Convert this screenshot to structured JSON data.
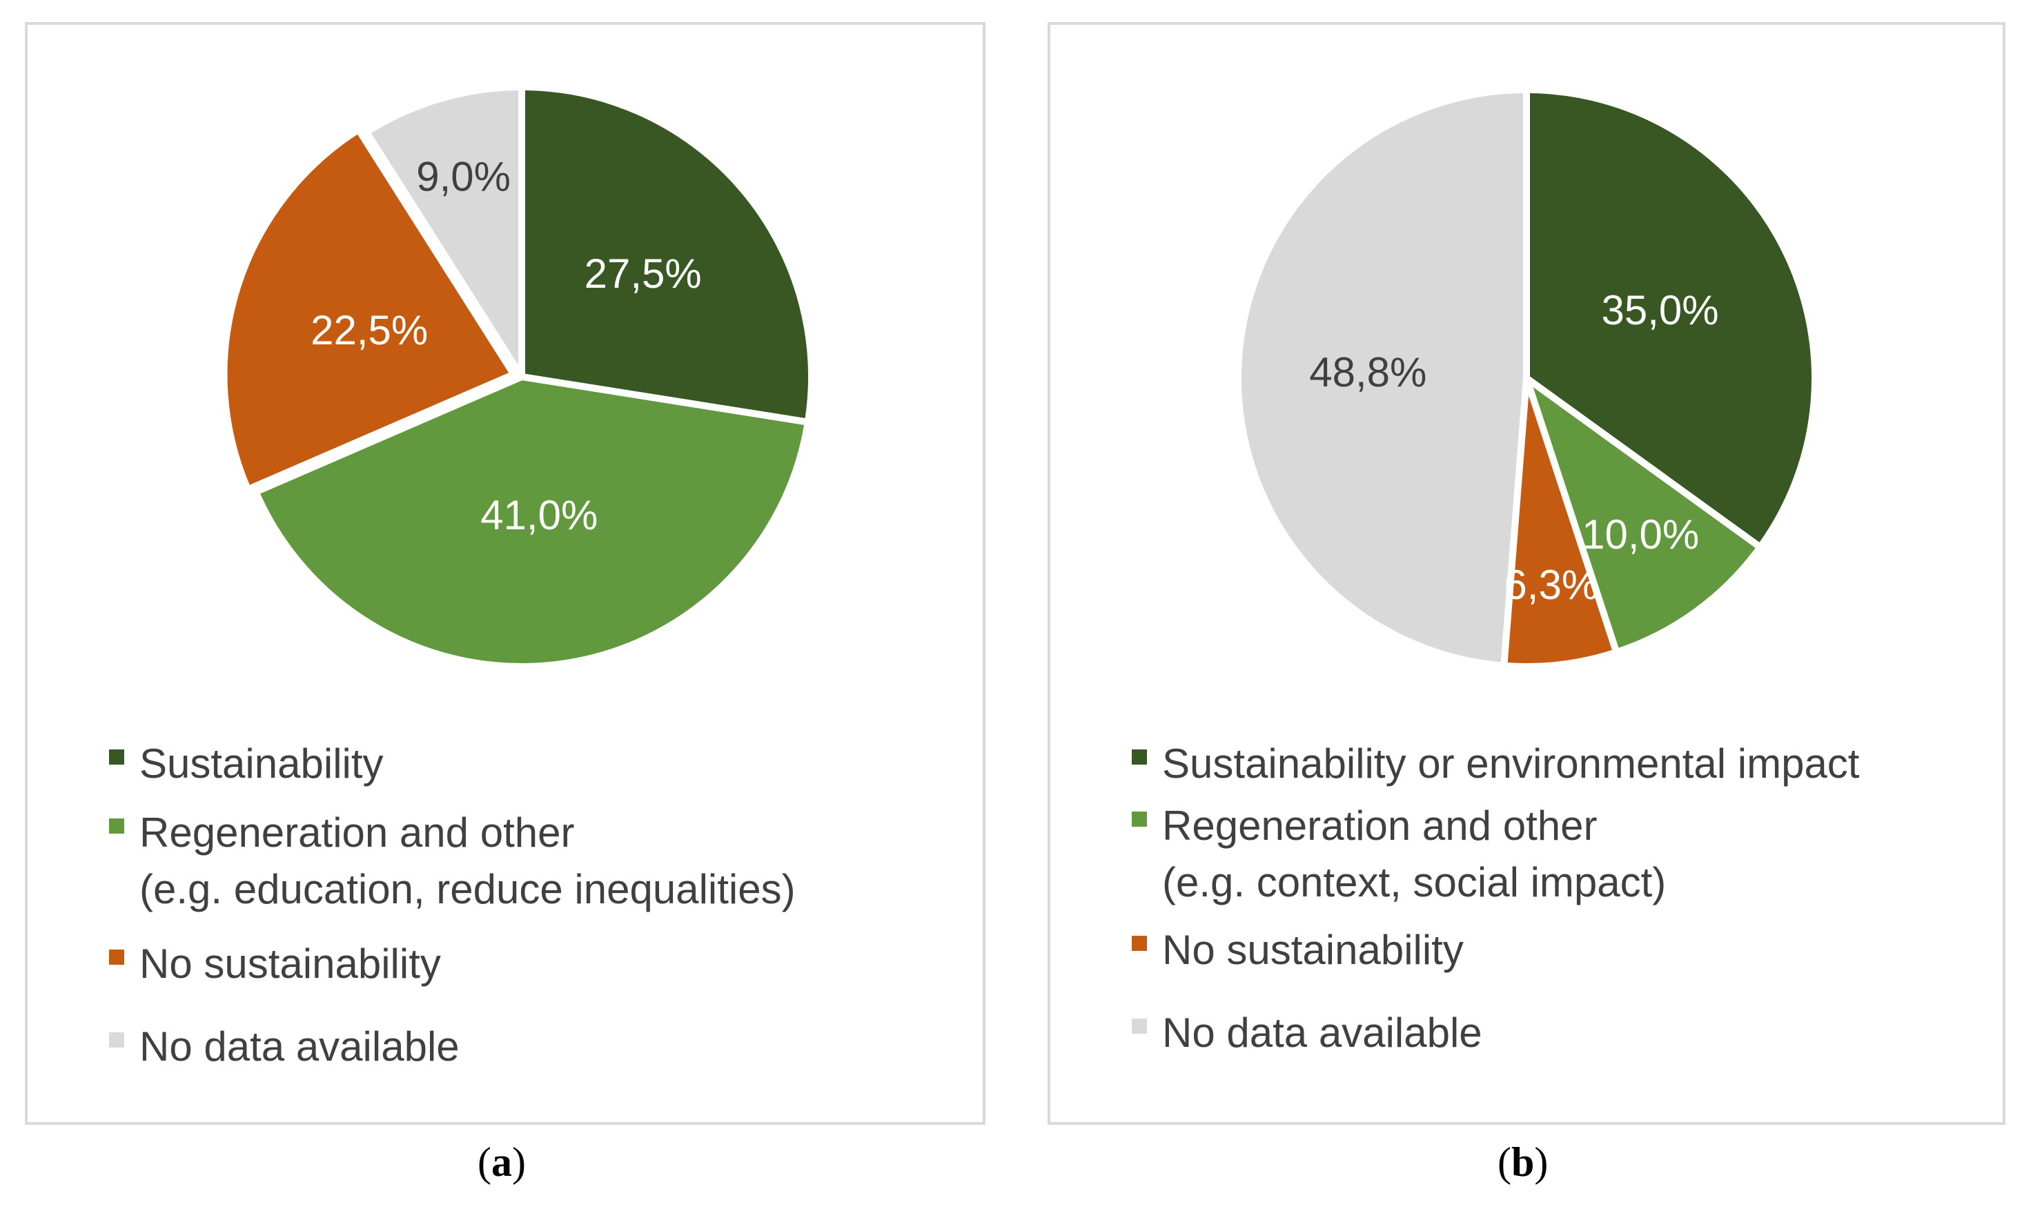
{
  "colors": {
    "sustainability": "#385723",
    "regeneration": "#62993e",
    "no_sustainability": "#c55a11",
    "no_data": "#d9d9d9",
    "label_dark": "#404040",
    "label_light": "#ffffff"
  },
  "chart_data": [
    {
      "type": "pie",
      "panel": "a",
      "caption_letter": "a",
      "slices": [
        {
          "name": "Sustainability",
          "value": 27.5,
          "label": "27,5%",
          "color": "#385723",
          "label_color": "#ffffff"
        },
        {
          "name": "Regeneration and other (e.g. education, reduce inequalities)",
          "value": 41.0,
          "label": "41,0%",
          "color": "#62993e",
          "label_color": "#ffffff"
        },
        {
          "name": "No sustainability",
          "value": 22.5,
          "label": "22,5%",
          "color": "#c55a11",
          "label_color": "#ffffff"
        },
        {
          "name": "No data available",
          "value": 9.0,
          "label": "9,0%",
          "color": "#d9d9d9",
          "label_color": "#404040"
        }
      ],
      "legend": [
        {
          "lines": [
            "Sustainability"
          ],
          "color": "#385723"
        },
        {
          "lines": [
            "Regeneration and other",
            "(e.g. education, reduce inequalities)"
          ],
          "color": "#62993e"
        },
        {
          "lines": [
            "No sustainability"
          ],
          "color": "#c55a11"
        },
        {
          "lines": [
            "No data available"
          ],
          "color": "#d9d9d9"
        }
      ]
    },
    {
      "type": "pie",
      "panel": "b",
      "caption_letter": "b",
      "slices": [
        {
          "name": "Sustainability or environmental impact",
          "value": 35.0,
          "label": "35,0%",
          "color": "#385723",
          "label_color": "#ffffff"
        },
        {
          "name": "Regeneration and other (e.g. context, social impact)",
          "value": 10.0,
          "label": "10,0%",
          "color": "#62993e",
          "label_color": "#ffffff"
        },
        {
          "name": "No sustainability",
          "value": 6.3,
          "label": "6,3%",
          "color": "#c55a11",
          "label_color": "#ffffff"
        },
        {
          "name": "No data available",
          "value": 48.8,
          "label": "48,8%",
          "color": "#d9d9d9",
          "label_color": "#404040"
        }
      ],
      "legend": [
        {
          "lines": [
            "Sustainability or environmental impact"
          ],
          "color": "#385723"
        },
        {
          "lines": [
            "Regeneration and other",
            "(e.g. context, social impact)"
          ],
          "color": "#62993e"
        },
        {
          "lines": [
            "No sustainability"
          ],
          "color": "#c55a11"
        },
        {
          "lines": [
            "No data available"
          ],
          "color": "#d9d9d9"
        }
      ]
    }
  ],
  "captions": {
    "a": {
      "open": "(",
      "letter": "a",
      "close": ")"
    },
    "b": {
      "open": "(",
      "letter": "b",
      "close": ")"
    }
  }
}
